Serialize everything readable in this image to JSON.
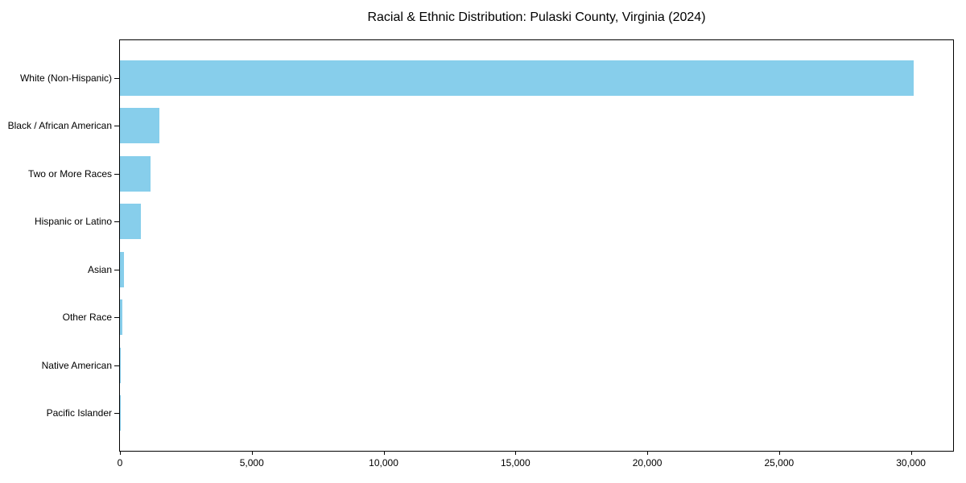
{
  "chart_data": {
    "type": "bar",
    "orientation": "horizontal",
    "title": "Racial & Ethnic Distribution: Pulaski County, Virginia (2024)",
    "xlabel": "",
    "ylabel": "",
    "categories": [
      "White (Non-Hispanic)",
      "Black / African American",
      "Two or More Races",
      "Hispanic or Latino",
      "Asian",
      "Other Race",
      "Native American",
      "Pacific Islander"
    ],
    "values": [
      30100,
      1500,
      1150,
      780,
      160,
      85,
      30,
      10
    ],
    "xlim": [
      0,
      31600
    ],
    "xticks": [
      0,
      5000,
      10000,
      15000,
      20000,
      25000,
      30000
    ],
    "xtick_labels": [
      "0",
      "5,000",
      "10,000",
      "15,000",
      "20,000",
      "25,000",
      "30,000"
    ],
    "bar_color": "#87CEEB",
    "axis_color": "#000000",
    "text_color": "#000000",
    "grid": false,
    "legend": null
  }
}
